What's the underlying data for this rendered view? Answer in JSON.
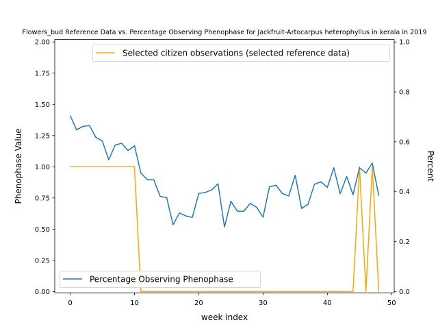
{
  "chart_data": {
    "type": "line",
    "title": "Flowers_bud Reference Data vs. Percentage Observing Phenophase for Jackfruit-Artocarpus heterophyllus in kerala in 2019",
    "xlabel": "week index",
    "ylabel": "Phenophase Value",
    "y2label": "Percent",
    "xlim": [
      -2.4,
      50.4
    ],
    "ylim": [
      -0.01,
      2.02
    ],
    "y2lim": [
      -0.005,
      1.01
    ],
    "xticks": [
      "0",
      "10",
      "20",
      "30",
      "40",
      "50"
    ],
    "yticks": [
      "0.00",
      "0.25",
      "0.50",
      "0.75",
      "1.00",
      "1.25",
      "1.50",
      "1.75",
      "2.00"
    ],
    "y2ticks": [
      "0.0",
      "0.2",
      "0.4",
      "0.6",
      "0.8",
      "1.0"
    ],
    "grid": false,
    "series": [
      {
        "name": "Selected citizen observations (selected reference data)",
        "axis": "left",
        "color": "#ffa500",
        "legend_position": "upper right",
        "x": [
          0,
          1,
          2,
          3,
          4,
          5,
          6,
          7,
          8,
          9,
          10,
          11,
          12,
          13,
          14,
          15,
          16,
          17,
          18,
          19,
          20,
          21,
          22,
          23,
          24,
          25,
          26,
          27,
          28,
          29,
          30,
          31,
          32,
          33,
          34,
          35,
          36,
          37,
          38,
          39,
          40,
          41,
          42,
          43,
          44,
          45,
          46,
          47,
          48
        ],
        "values": [
          1,
          1,
          1,
          1,
          1,
          1,
          1,
          1,
          1,
          1,
          1,
          0,
          0,
          0,
          0,
          0,
          0,
          0,
          0,
          0,
          0,
          0,
          0,
          0,
          0,
          0,
          0,
          0,
          0,
          0,
          0,
          0,
          0,
          0,
          0,
          0,
          0,
          0,
          0,
          0,
          0,
          0,
          0,
          0,
          0,
          1,
          0,
          1,
          0
        ]
      },
      {
        "name": "Percentage Observing Phenophase",
        "axis": "right",
        "color": "#1f77b4",
        "legend_position": "lower left",
        "x": [
          0,
          1,
          2,
          3,
          4,
          5,
          6,
          7,
          8,
          9,
          10,
          11,
          12,
          13,
          14,
          15,
          16,
          17,
          18,
          19,
          20,
          21,
          22,
          23,
          24,
          25,
          26,
          27,
          28,
          29,
          30,
          31,
          32,
          33,
          34,
          35,
          36,
          37,
          38,
          39,
          40,
          41,
          42,
          43,
          44,
          45,
          46,
          47,
          48
        ],
        "values": [
          0.705,
          0.648,
          0.662,
          0.665,
          0.618,
          0.603,
          0.528,
          0.587,
          0.594,
          0.565,
          0.584,
          0.475,
          0.448,
          0.448,
          0.381,
          0.377,
          0.268,
          0.315,
          0.303,
          0.297,
          0.393,
          0.397,
          0.407,
          0.432,
          0.259,
          0.362,
          0.322,
          0.322,
          0.353,
          0.338,
          0.298,
          0.42,
          0.426,
          0.393,
          0.383,
          0.466,
          0.333,
          0.35,
          0.43,
          0.44,
          0.417,
          0.496,
          0.392,
          0.461,
          0.388,
          0.496,
          0.475,
          0.515,
          0.384
        ]
      }
    ]
  }
}
